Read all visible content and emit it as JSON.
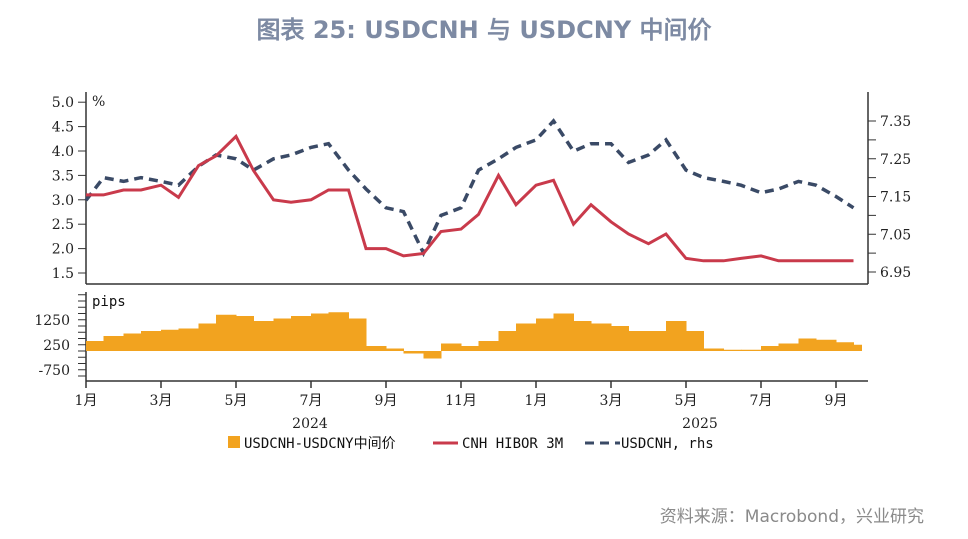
{
  "title": "图表 25: USDCNH 与 USDCNY 中间价",
  "source": "资料来源：Macrobond，兴业研究",
  "chart_data": {
    "type": "line+bar",
    "upper_left_unit": "%",
    "lower_unit": "pips",
    "left_ticks": [
      "5.0",
      "4.5",
      "4.0",
      "3.5",
      "3.0",
      "2.5",
      "2.0",
      "1.5"
    ],
    "left_range": [
      1.5,
      5.0
    ],
    "right_ticks": [
      "7.35",
      "7.25",
      "7.15",
      "7.05",
      "6.95"
    ],
    "right_range": [
      6.95,
      7.35
    ],
    "lower_ticks": [
      "1250",
      "250",
      "-750"
    ],
    "x_tick_labels": [
      "1月",
      "3月",
      "5月",
      "7月",
      "9月",
      "11月",
      "1月",
      "3月",
      "5月",
      "7月",
      "9月"
    ],
    "year_labels": [
      "2024",
      "2025"
    ],
    "legend": [
      {
        "name": "USDCNH-USDCNY中间价",
        "color": "#f2a31f",
        "style": "bar"
      },
      {
        "name": "CNH HIBOR 3M",
        "color": "#c93a4b",
        "style": "solid"
      },
      {
        "name": "USDCNH, rhs",
        "color": "#3a4a66",
        "style": "dashed"
      }
    ],
    "legend_position": "bottom",
    "x": [
      "2024-01-01",
      "2024-01-15",
      "2024-02-01",
      "2024-02-15",
      "2024-03-01",
      "2024-03-15",
      "2024-04-01",
      "2024-04-15",
      "2024-05-01",
      "2024-05-15",
      "2024-06-01",
      "2024-06-15",
      "2024-07-01",
      "2024-07-15",
      "2024-08-01",
      "2024-08-15",
      "2024-09-01",
      "2024-09-15",
      "2024-10-01",
      "2024-10-15",
      "2024-11-01",
      "2024-11-15",
      "2024-12-01",
      "2024-12-15",
      "2025-01-01",
      "2025-01-15",
      "2025-02-01",
      "2025-02-15",
      "2025-03-01",
      "2025-03-15",
      "2025-04-01",
      "2025-04-15",
      "2025-05-01",
      "2025-05-15",
      "2025-06-01",
      "2025-06-15",
      "2025-07-01",
      "2025-07-15",
      "2025-08-01",
      "2025-08-15",
      "2025-09-01",
      "2025-09-15"
    ],
    "series": [
      {
        "name": "USDCNH-USDCNY中间价",
        "axis": "lower",
        "values": [
          400,
          600,
          700,
          800,
          850,
          900,
          1100,
          1450,
          1400,
          1200,
          1300,
          1400,
          1500,
          1550,
          1300,
          200,
          100,
          -100,
          -300,
          300,
          200,
          400,
          800,
          1100,
          1300,
          1500,
          1200,
          1100,
          1000,
          800,
          800,
          1200,
          800,
          100,
          50,
          50,
          200,
          300,
          500,
          450,
          350,
          250
        ]
      },
      {
        "name": "CNH HIBOR 3M",
        "axis": "left",
        "values": [
          3.1,
          3.1,
          3.2,
          3.2,
          3.3,
          3.05,
          3.7,
          3.9,
          4.3,
          3.6,
          3.0,
          2.95,
          3.0,
          3.2,
          3.2,
          2.0,
          2.0,
          1.85,
          1.9,
          2.35,
          2.4,
          2.7,
          3.5,
          2.9,
          3.3,
          3.4,
          2.5,
          2.9,
          2.55,
          2.3,
          2.1,
          2.3,
          1.8,
          1.75,
          1.75,
          1.8,
          1.85,
          1.75,
          1.75,
          1.75,
          1.75,
          1.75
        ]
      },
      {
        "name": "USDCNH, rhs",
        "axis": "right",
        "values": [
          7.14,
          7.2,
          7.19,
          7.2,
          7.19,
          7.18,
          7.23,
          7.26,
          7.25,
          7.22,
          7.25,
          7.26,
          7.28,
          7.29,
          7.22,
          7.17,
          7.12,
          7.11,
          7.0,
          7.1,
          7.12,
          7.22,
          7.25,
          7.28,
          7.3,
          7.35,
          7.27,
          7.29,
          7.29,
          7.24,
          7.26,
          7.3,
          7.22,
          7.2,
          7.19,
          7.18,
          7.16,
          7.17,
          7.19,
          7.18,
          7.15,
          7.12
        ]
      }
    ]
  }
}
